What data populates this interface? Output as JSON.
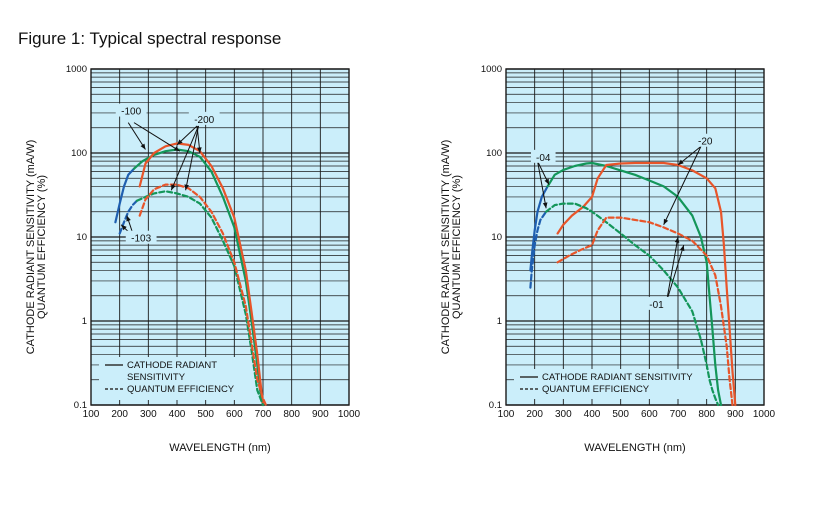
{
  "figure": {
    "title": "Figure 1: Typical spectral response"
  },
  "colors": {
    "plot_bg": "#cbeefa",
    "grid": "#1a1a1a",
    "blue": "#1f5fb0",
    "green": "#14965a",
    "red": "#e8552a",
    "dark": "#333333"
  },
  "chart_data": [
    {
      "type": "line",
      "yscale": "log",
      "xlabel": "WAVELENGTH (nm)",
      "ylabel_line1": "CATHODE RADIANT SENSITIVITY (mA/W)",
      "ylabel_line2": "QUANTUM EFFICIENCY (%)",
      "xlim": [
        100,
        1000
      ],
      "ylim": [
        0.1,
        1000
      ],
      "xticks": [
        100,
        200,
        300,
        400,
        500,
        600,
        700,
        800,
        900,
        1000
      ],
      "xtick_labels": [
        "100",
        "200",
        "300",
        "400",
        "500",
        "600",
        "700",
        "800",
        "900",
        "1000"
      ],
      "yticks": [
        0.1,
        1,
        10,
        100,
        1000
      ],
      "ytick_labels": [
        "0.1",
        "1",
        "10",
        "100",
        "1000"
      ],
      "legend": {
        "solid": [
          "CATHODE RADIANT",
          "SENSITIVITY"
        ],
        "dashed": [
          "QUANTUM EFFICIENCY"
        ]
      },
      "series": [
        {
          "name": "-100 sensitivity",
          "color": "blue",
          "dash": false,
          "x": [
            185,
            200,
            215,
            230,
            250
          ],
          "y": [
            15,
            25,
            40,
            55,
            65
          ]
        },
        {
          "name": "-100 sensitivity",
          "color": "green",
          "dash": false,
          "x": [
            250,
            280,
            320,
            360,
            400,
            440,
            480,
            520,
            560,
            600,
            640,
            660,
            680,
            690,
            700
          ],
          "y": [
            65,
            80,
            95,
            105,
            110,
            105,
            90,
            60,
            30,
            13,
            3,
            1,
            0.3,
            0.15,
            0.1
          ]
        },
        {
          "name": "-200 sensitivity",
          "color": "red",
          "dash": false,
          "x": [
            270,
            290,
            320,
            360,
            400,
            440,
            480,
            520,
            560,
            600,
            640,
            660,
            680,
            700
          ],
          "y": [
            40,
            75,
            100,
            120,
            130,
            125,
            105,
            70,
            38,
            17,
            4,
            1.3,
            0.4,
            0.1
          ]
        },
        {
          "name": "-103 QE",
          "color": "blue",
          "dash": true,
          "x": [
            200,
            215,
            230,
            245,
            260
          ],
          "y": [
            11,
            15,
            20,
            24,
            27
          ]
        },
        {
          "name": "-103 QE",
          "color": "green",
          "dash": true,
          "x": [
            260,
            290,
            320,
            360,
            400,
            440,
            480,
            520,
            560,
            600,
            640,
            660,
            680,
            700
          ],
          "y": [
            27,
            30,
            33,
            35,
            33,
            30,
            25,
            17,
            9,
            4.5,
            1.2,
            0.45,
            0.15,
            0.1
          ]
        },
        {
          "name": "-200 QE",
          "color": "red",
          "dash": true,
          "x": [
            270,
            290,
            320,
            360,
            400,
            440,
            480,
            520,
            560,
            600,
            640,
            660,
            680,
            700,
            710
          ],
          "y": [
            18,
            28,
            37,
            42,
            42,
            38,
            30,
            20,
            11,
            5,
            1.5,
            0.55,
            0.2,
            0.12,
            0.1
          ]
        }
      ],
      "annotations": [
        {
          "text": "-100",
          "x": 240,
          "y": 320
        },
        {
          "text": "-200",
          "x": 495,
          "y": 255
        },
        {
          "text": "-103",
          "x": 275,
          "y": 9.8
        }
      ],
      "arrows": [
        {
          "from": [
            230,
            230
          ],
          "to": [
            290,
            110
          ]
        },
        {
          "from": [
            250,
            230
          ],
          "to": [
            410,
            105
          ]
        },
        {
          "from": [
            470,
            210
          ],
          "to": [
            400,
            125
          ]
        },
        {
          "from": [
            470,
            210
          ],
          "to": [
            480,
            100
          ]
        },
        {
          "from": [
            475,
            210
          ],
          "to": [
            380,
            36
          ]
        },
        {
          "from": [
            475,
            210
          ],
          "to": [
            430,
            36
          ]
        },
        {
          "from": [
            250,
            10
          ],
          "to": [
            205,
            14
          ]
        },
        {
          "from": [
            250,
            10
          ],
          "to": [
            225,
            18
          ]
        }
      ]
    },
    {
      "type": "line",
      "yscale": "log",
      "xlabel": "WAVELENGTH (nm)",
      "ylabel_line1": "CATHODE RADIANT SENSITIVITY (mA/W)",
      "ylabel_line2": "QUANTUM EFFICIENCY (%)",
      "xlim": [
        100,
        1000
      ],
      "ylim": [
        0.1,
        1000
      ],
      "xticks": [
        100,
        200,
        300,
        400,
        500,
        600,
        700,
        800,
        900,
        1000
      ],
      "xtick_labels": [
        "100",
        "200",
        "300",
        "400",
        "500",
        "600",
        "700",
        "800",
        "900",
        "1000"
      ],
      "yticks": [
        0.1,
        1,
        10,
        100,
        1000
      ],
      "ytick_labels": [
        "0.1",
        "1",
        "10",
        "100",
        "1000"
      ],
      "legend": {
        "solid": [
          "CATHODE RADIANT SENSITIVITY"
        ],
        "dashed": [
          "QUANTUM EFFICIENCY"
        ]
      },
      "series": [
        {
          "name": "-04 sensitivity",
          "color": "blue",
          "dash": false,
          "x": [
            185,
            190,
            200,
            210,
            225,
            245
          ],
          "y": [
            4,
            6,
            12,
            20,
            30,
            40
          ]
        },
        {
          "name": "-04 sensitivity",
          "color": "green",
          "dash": false,
          "x": [
            245,
            270,
            300,
            340,
            380,
            400,
            450,
            500,
            550,
            600,
            650,
            700,
            750,
            780,
            800,
            810,
            820,
            830,
            840,
            850
          ],
          "y": [
            40,
            55,
            63,
            70,
            75,
            76,
            70,
            62,
            55,
            47,
            40,
            30,
            18,
            10,
            5,
            2,
            0.8,
            0.3,
            0.15,
            0.1
          ]
        },
        {
          "name": "-20 sensitivity",
          "color": "red",
          "dash": false,
          "x": [
            280,
            300,
            330,
            370,
            400,
            420,
            450,
            500,
            550,
            600,
            650,
            700,
            750,
            800,
            830,
            850,
            860,
            870,
            880,
            890,
            900
          ],
          "y": [
            11,
            14,
            18,
            23,
            30,
            50,
            72,
            75,
            76,
            76,
            76,
            72,
            62,
            50,
            38,
            20,
            8,
            2.5,
            0.8,
            0.25,
            0.1
          ]
        },
        {
          "name": "-04 QE",
          "color": "blue",
          "dash": true,
          "x": [
            185,
            190,
            200,
            210,
            220,
            240
          ],
          "y": [
            2.5,
            4,
            8,
            12,
            16,
            20
          ]
        },
        {
          "name": "-04 QE",
          "color": "green",
          "dash": true,
          "x": [
            240,
            270,
            300,
            340,
            380,
            400,
            450,
            500,
            550,
            600,
            650,
            700,
            750,
            780,
            800,
            810,
            820,
            830,
            840
          ],
          "y": [
            20,
            24,
            25,
            25,
            22,
            20,
            15,
            11,
            8,
            6,
            4,
            2.5,
            1.3,
            0.6,
            0.3,
            0.2,
            0.15,
            0.12,
            0.1
          ]
        },
        {
          "name": "-20 QE",
          "color": "red",
          "dash": true,
          "x": [
            280,
            320,
            360,
            400,
            420,
            450,
            500,
            550,
            600,
            650,
            700,
            750,
            800,
            830,
            850,
            870,
            880,
            890
          ],
          "y": [
            5,
            6,
            7,
            8,
            12,
            17,
            17,
            16,
            15,
            13,
            11,
            9,
            6,
            3.5,
            1.5,
            0.5,
            0.2,
            0.1
          ]
        }
      ],
      "annotations": [
        {
          "text": "-04",
          "x": 230,
          "y": 90
        },
        {
          "text": "-20",
          "x": 795,
          "y": 140
        },
        {
          "text": "-01",
          "x": 625,
          "y": 1.6
        }
      ],
      "arrows": [
        {
          "from": [
            210,
            80
          ],
          "to": [
            250,
            42
          ]
        },
        {
          "from": [
            210,
            80
          ],
          "to": [
            240,
            22
          ]
        },
        {
          "from": [
            780,
            120
          ],
          "to": [
            700,
            72
          ]
        },
        {
          "from": [
            780,
            120
          ],
          "to": [
            650,
            14
          ]
        },
        {
          "from": [
            660,
            1.7
          ],
          "to": [
            700,
            10
          ]
        },
        {
          "from": [
            660,
            1.7
          ],
          "to": [
            720,
            8
          ]
        }
      ]
    }
  ]
}
